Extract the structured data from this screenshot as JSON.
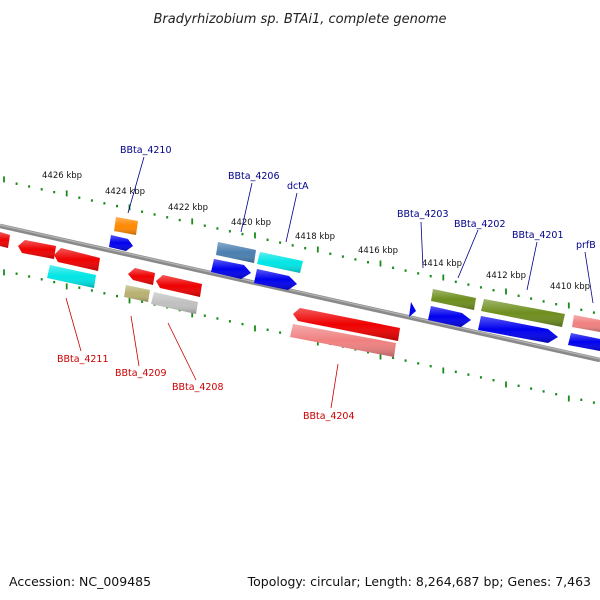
{
  "header": {
    "title": "Bradyrhizobium sp. BTAi1, complete genome"
  },
  "footer": {
    "accession": "Accession: NC_009485",
    "summary": "Topology: circular; Length: 8,264,687 bp; Genes: 7,463"
  },
  "colors": {
    "backbone": "#888888",
    "tick_dots": "#1a8a1a",
    "label_fwd": "#00008b",
    "label_rev": "#cc0000",
    "orf_blue": "#0000ee",
    "orf_cyan": "#00e5e5",
    "orf_red": "#ee0000",
    "orf_orange": "#ff8800",
    "orf_steel": "#4a7fb0",
    "orf_olive": "#6e8e1e",
    "orf_khaki": "#b8b070",
    "orf_grey": "#c0c0c0",
    "orf_pink": "#f08080"
  },
  "scale_labels": [
    "4426 kbp",
    "4424 kbp",
    "4422 kbp",
    "4420 kbp",
    "4418 kbp",
    "4416 kbp",
    "4414 kbp",
    "4412 kbp",
    "4410 kbp"
  ],
  "gene_labels_forward": [
    "BBta_4210",
    "BBta_4206",
    "dctA",
    "BBta_4203",
    "BBta_4202",
    "BBta_4201",
    "prfB"
  ],
  "gene_labels_reverse": [
    "BBta_4211",
    "BBta_4209",
    "BBta_4208",
    "BBta_4204"
  ]
}
